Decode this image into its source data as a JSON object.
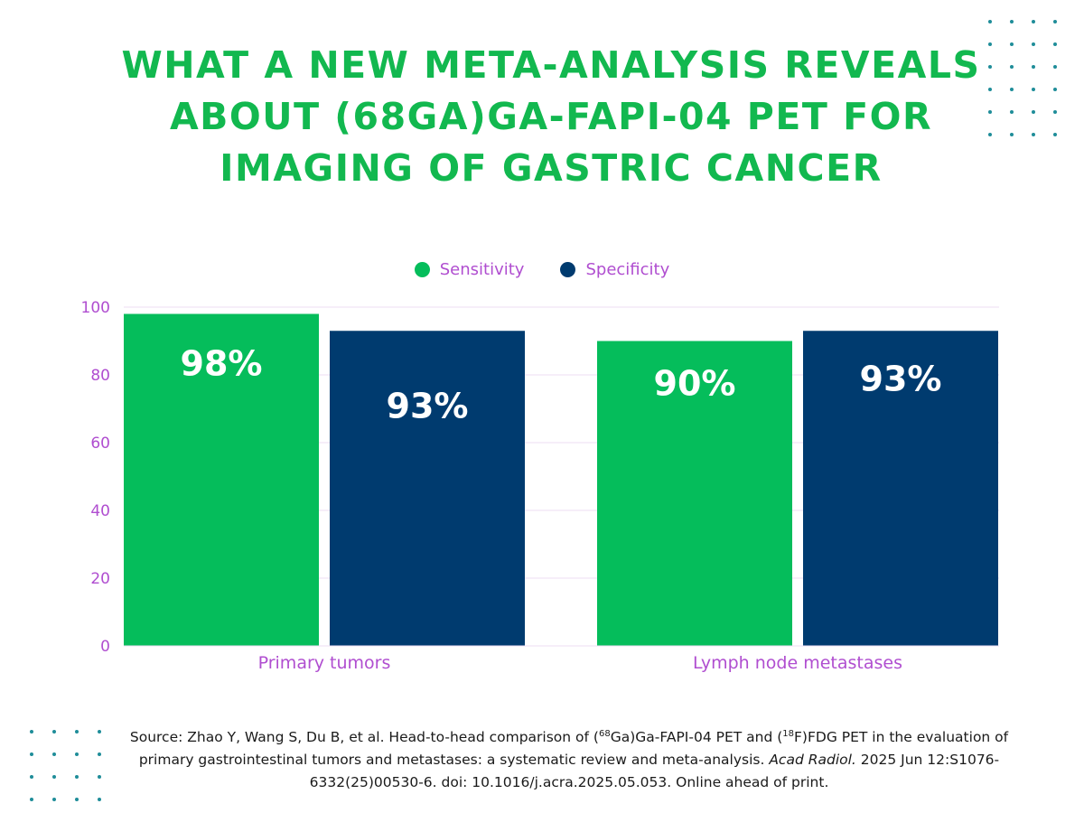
{
  "title": "WHAT A NEW META-ANALYSIS REVEALS ABOUT (68GA)GA-FAPI-04 PET FOR IMAGING OF GASTRIC CANCER",
  "colors": {
    "title": "#12b84f",
    "sensitivity": "#05bd5b",
    "specificity": "#003b6f",
    "axis_text": "#b04ed0",
    "dots": "#1f8d99"
  },
  "chart_data": {
    "type": "bar",
    "title": "",
    "xlabel": "",
    "ylabel": "",
    "ylim": [
      0,
      100
    ],
    "yticks": [
      0,
      20,
      40,
      60,
      80,
      100
    ],
    "grid": true,
    "legend_position": "top-center",
    "categories": [
      "Primary tumors",
      "Lymph node metastases"
    ],
    "series": [
      {
        "name": "Sensitivity",
        "values": [
          98,
          90
        ],
        "labels": [
          "98%",
          "90%"
        ],
        "color": "#05bd5b"
      },
      {
        "name": "Specificity",
        "values": [
          93,
          93
        ],
        "labels": [
          "93%",
          "93%"
        ],
        "color": "#003b6f"
      }
    ]
  },
  "source": {
    "prefix": "Source: Zhao Y, Wang S, Du B, et al. Head-to-head comparison of (",
    "sup1": "68",
    "mid1": "Ga)Ga-FAPI-04 PET and (",
    "sup2": "18",
    "mid2": "F)FDG PET in the evaluation of primary gastrointestinal tumors and metastases: a systematic review and meta-analysis. ",
    "journal": "Acad Radiol.",
    "suffix": " 2025 Jun 12:S1076-6332(25)00530-6. doi: 10.1016/j.acra.2025.05.053. Online ahead of print."
  }
}
